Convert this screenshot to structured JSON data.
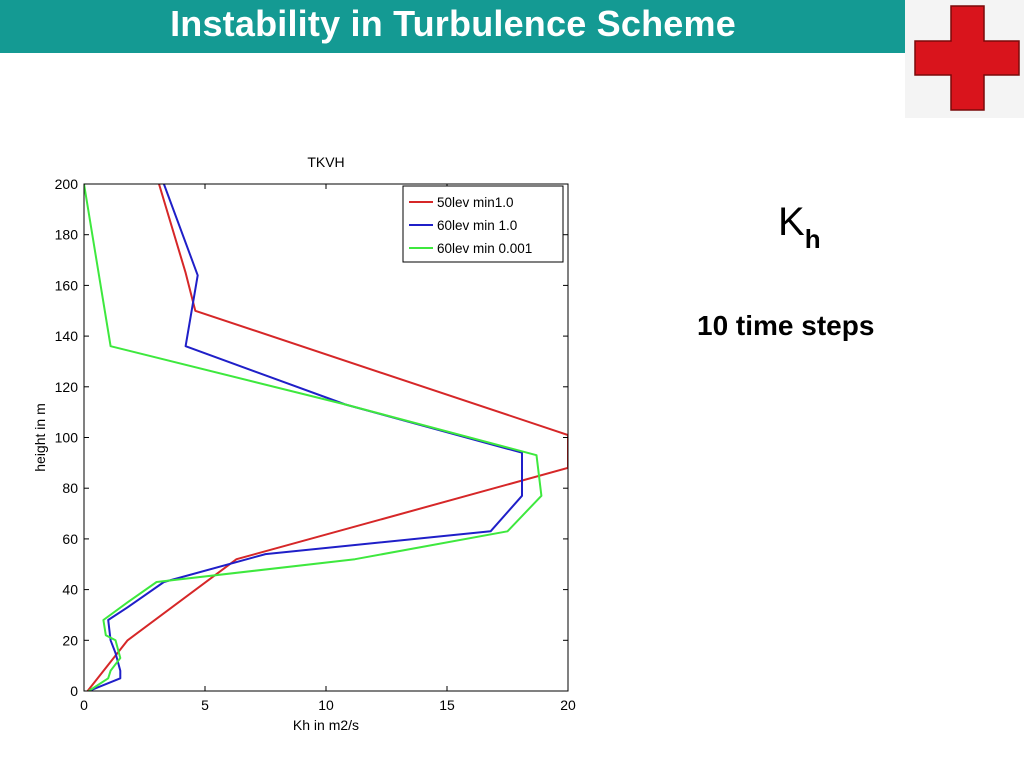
{
  "slide": {
    "title": "Instability in Turbulence Scheme",
    "kh_main": "K",
    "kh_sub": "h",
    "steps": "10 time steps"
  },
  "colors": {
    "title_bar": "#149a93",
    "logo_cross": "#d9141c"
  },
  "chart_data": {
    "type": "line",
    "title": "TKVH",
    "xlabel": "Kh in m2/s",
    "ylabel": "height in m",
    "xlim": [
      0,
      20
    ],
    "ylim": [
      0,
      200
    ],
    "xticks": [
      0,
      5,
      10,
      15,
      20
    ],
    "yticks": [
      0,
      20,
      40,
      60,
      80,
      100,
      120,
      140,
      160,
      180,
      200
    ],
    "legend_position": "top-right",
    "grid": false,
    "series": [
      {
        "name": "50lev min1.0",
        "color": "#d62728",
        "x": [
          0.15,
          1.8,
          6.3,
          20.0,
          20.0,
          4.6,
          4.2,
          3.1
        ],
        "y": [
          0,
          20,
          52,
          88,
          101,
          150,
          165,
          200
        ]
      },
      {
        "name": "60lev min 1.0",
        "color": "#1f1fc8",
        "x": [
          0.2,
          1.5,
          1.5,
          1.3,
          1.1,
          1.0,
          1.8,
          3.3,
          7.5,
          16.8,
          18.1,
          18.1,
          10.8,
          4.2,
          4.7,
          3.3
        ],
        "y": [
          0,
          5,
          8,
          15,
          20,
          28,
          33,
          43,
          54,
          63,
          77,
          94,
          113,
          136,
          164,
          200
        ]
      },
      {
        "name": "60lev min 0.001",
        "color": "#3ee83e",
        "x": [
          0.2,
          1.0,
          1.1,
          1.5,
          1.3,
          0.9,
          0.8,
          1.8,
          3.0,
          11.2,
          17.5,
          18.9,
          18.7,
          10.8,
          1.1,
          0.0
        ],
        "y": [
          0,
          5,
          8,
          13,
          20,
          22,
          28,
          35,
          43,
          52,
          63,
          77,
          93,
          113,
          136,
          200
        ]
      }
    ]
  }
}
